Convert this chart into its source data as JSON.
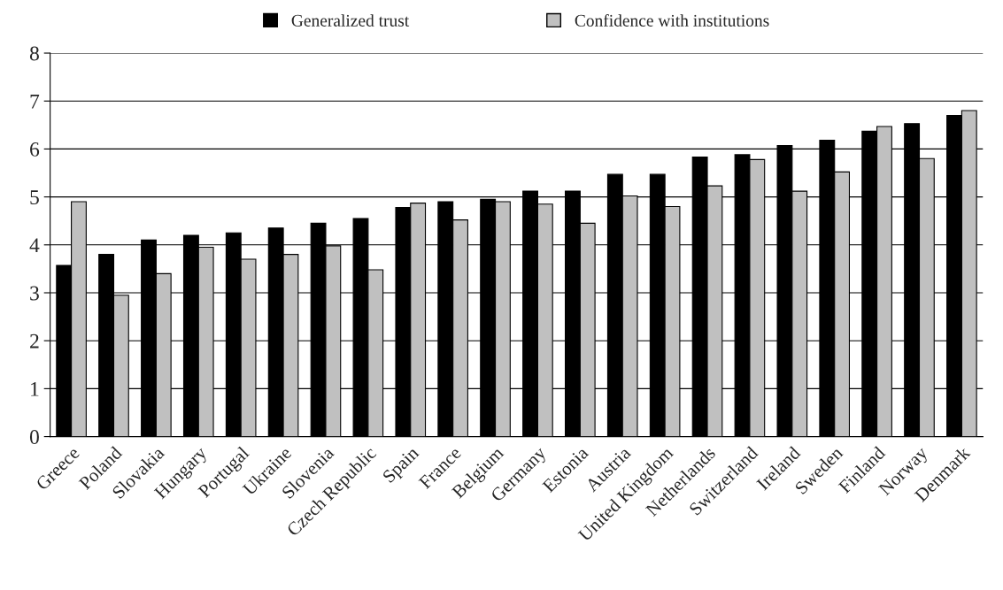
{
  "chart_data": {
    "type": "bar",
    "categories": [
      "Greece",
      "Poland",
      "Slovakia",
      "Hungary",
      "Portugal",
      "Ukraine",
      "Slovenia",
      "Czech Republic",
      "Spain",
      "France",
      "Belgium",
      "Germany",
      "Estonia",
      "Austria",
      "United Kingdom",
      "Netherlands",
      "Switzerland",
      "Ireland",
      "Sweden",
      "Finland",
      "Norway",
      "Denmark"
    ],
    "series": [
      {
        "name": "Generalized trust",
        "color": "#000000",
        "values": [
          3.57,
          3.8,
          4.1,
          4.2,
          4.25,
          4.35,
          4.45,
          4.55,
          4.78,
          4.9,
          4.95,
          5.12,
          5.12,
          5.47,
          5.47,
          5.83,
          5.88,
          6.07,
          6.18,
          6.37,
          6.53,
          6.7
        ]
      },
      {
        "name": "Confidence with institutions",
        "color": "#c0c0c0",
        "values": [
          4.9,
          2.95,
          3.4,
          3.95,
          3.7,
          3.8,
          3.98,
          3.48,
          4.87,
          4.52,
          4.9,
          4.85,
          4.45,
          5.02,
          4.8,
          5.23,
          5.78,
          5.12,
          5.52,
          6.47,
          5.8,
          6.8
        ]
      }
    ],
    "ylim": [
      0,
      8
    ],
    "yticks": [
      0,
      1,
      2,
      3,
      4,
      5,
      6,
      7,
      8
    ],
    "grid": "y",
    "legend": "top"
  }
}
